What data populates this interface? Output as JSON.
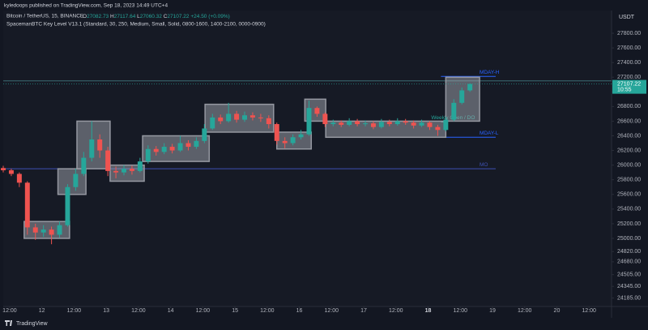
{
  "header": {
    "publisher": "kyledoops published on TradingView.com, Sep 18, 2023 14:49 UTC+4",
    "symbol": "Bitcoin / TetherUS, 15, BINANCE",
    "ohlc": [
      {
        "key": "O",
        "value": 27082.73
      },
      {
        "key": "H",
        "value": 27117.64
      },
      {
        "key": "L",
        "value": 27060.32
      },
      {
        "key": "C",
        "value": 27107.22
      }
    ],
    "change": "+24.50 (+0.09%)",
    "indicator": "SpacemanBTC Key Level V13.1 (Standard, 30, 250, Medium, Small, Solid, 0800-1600, 1400-2100, 0000-0900)",
    "currency": "USDT",
    "brand": "TradingView"
  },
  "chart_data": {
    "type": "candlestick",
    "x": [
      -0.2,
      0.05,
      0.3,
      0.55,
      0.8,
      1.05,
      1.3,
      1.55,
      1.8,
      2.05,
      2.3,
      2.55,
      2.8,
      3.05,
      3.3,
      3.55,
      3.8,
      4.05,
      4.3,
      4.55,
      4.8,
      5.05,
      5.3,
      5.55,
      5.8,
      6.05,
      6.3,
      6.55,
      6.8,
      7.05,
      7.3,
      7.55,
      7.8,
      8.05,
      8.3,
      8.55,
      8.8,
      9.05,
      9.3,
      9.55,
      9.8,
      10.05,
      10.3,
      10.55,
      10.8,
      11.05,
      11.3,
      11.55,
      11.8,
      12.05,
      12.3,
      12.55,
      12.8,
      13.05,
      13.3,
      13.55,
      13.8,
      14.05,
      14.3
    ],
    "open": [
      25960,
      25930,
      25880,
      25760,
      25150,
      25080,
      25120,
      25050,
      25180,
      25700,
      25880,
      26100,
      26350,
      26200,
      25920,
      25900,
      25950,
      25920,
      26050,
      26220,
      26180,
      26250,
      26200,
      26300,
      26250,
      26330,
      26500,
      26650,
      26600,
      26700,
      26620,
      26680,
      26650,
      26640,
      26560,
      26330,
      26300,
      26380,
      26420,
      26780,
      26700,
      26560,
      26580,
      26550,
      26600,
      26560,
      26570,
      26520,
      26590,
      26560,
      26600,
      26580,
      26540,
      26580,
      26520,
      26480,
      26620,
      26850,
      27020
    ],
    "high": [
      25990,
      25950,
      25900,
      25780,
      25200,
      25180,
      25160,
      25230,
      25740,
      25950,
      26180,
      26600,
      26420,
      26250,
      25980,
      26000,
      25990,
      26100,
      26270,
      26260,
      26300,
      26290,
      26400,
      26340,
      26380,
      26560,
      26700,
      26690,
      26850,
      26740,
      26730,
      26720,
      26700,
      26680,
      26580,
      26380,
      26420,
      26480,
      26880,
      26800,
      26720,
      26620,
      26610,
      26640,
      26630,
      26610,
      26600,
      26630,
      26620,
      26640,
      26630,
      26610,
      26620,
      26600,
      26550,
      26660,
      26900,
      27060,
      27117.64
    ],
    "low": [
      25900,
      25850,
      25700,
      25050,
      24980,
      25020,
      24920,
      25010,
      25160,
      25650,
      25850,
      26050,
      26100,
      25850,
      25820,
      25860,
      25870,
      25900,
      26020,
      26130,
      26150,
      26160,
      26180,
      26200,
      26220,
      26300,
      26480,
      26560,
      26580,
      26580,
      26590,
      26610,
      26590,
      26500,
      26280,
      26230,
      26270,
      26350,
      26400,
      26660,
      26520,
      26530,
      26520,
      26530,
      26530,
      26530,
      26490,
      26500,
      26530,
      26540,
      26550,
      26500,
      26520,
      26480,
      26400,
      26460,
      26600,
      26830,
      27000
    ],
    "close": [
      25930,
      25880,
      25760,
      25150,
      25080,
      25120,
      25050,
      25180,
      25700,
      25880,
      26100,
      26350,
      26200,
      25920,
      25900,
      25950,
      25920,
      26050,
      26220,
      26180,
      26250,
      26200,
      26300,
      26250,
      26330,
      26500,
      26650,
      26600,
      26700,
      26620,
      26680,
      26650,
      26640,
      26560,
      26330,
      26300,
      26380,
      26420,
      26780,
      26700,
      26560,
      26580,
      26550,
      26600,
      26560,
      26570,
      26520,
      26590,
      26560,
      26600,
      26580,
      26540,
      26580,
      26520,
      26480,
      26620,
      26850,
      27020,
      27107.22
    ],
    "up_color": "#26a69a",
    "down_color": "#ef5350",
    "zones": [
      {
        "x": [
          0.45,
          1.86
        ],
        "y": [
          25000,
          25230
        ]
      },
      {
        "x": [
          1.5,
          2.37
        ],
        "y": [
          25600,
          25950
        ]
      },
      {
        "x": [
          2.09,
          3.12
        ],
        "y": [
          25950,
          26600
        ]
      },
      {
        "x": [
          3.12,
          4.18
        ],
        "y": [
          25780,
          26000
        ]
      },
      {
        "x": [
          4.13,
          6.2
        ],
        "y": [
          26050,
          26400
        ]
      },
      {
        "x": [
          6.07,
          8.2
        ],
        "y": [
          26450,
          26830
        ]
      },
      {
        "x": [
          8.3,
          9.37
        ],
        "y": [
          26220,
          26450
        ]
      },
      {
        "x": [
          9.17,
          9.82
        ],
        "y": [
          26600,
          26900
        ]
      },
      {
        "x": [
          9.82,
          13.55
        ],
        "y": [
          26380,
          26600
        ]
      },
      {
        "x": [
          13.55,
          14.6
        ],
        "y": [
          26600,
          27200
        ]
      }
    ],
    "levels": [
      {
        "value": 27150,
        "x": [
          -0.2,
          18.7
        ],
        "color": "#3b6b73"
      },
      {
        "label": "MDAY-H",
        "value": 27210,
        "x": [
          13.4,
          15.1
        ],
        "color": "#2962ff"
      },
      {
        "label": "Weekly Open / DO",
        "value": 26590,
        "x": [
          13.4,
          13.6
        ],
        "color": "#26a69a"
      },
      {
        "label": "MDAY-L",
        "value": 26380,
        "x": [
          13.4,
          15.1
        ],
        "color": "#2962ff"
      },
      {
        "label": "MO",
        "value": 25950,
        "x": [
          -0.2,
          15.1
        ],
        "color": "#3f51b5"
      }
    ],
    "last_price": {
      "value": 27107.22,
      "countdown": "10:55"
    },
    "xlim": [
      -0.2,
      18.7
    ],
    "ylim": [
      24070,
      28110
    ],
    "xticks": [
      {
        "value": 0,
        "label": "12:00"
      },
      {
        "value": 1,
        "label": "12"
      },
      {
        "value": 2,
        "label": "12:00"
      },
      {
        "value": 3,
        "label": "13"
      },
      {
        "value": 4,
        "label": "12:00"
      },
      {
        "value": 5,
        "label": "14"
      },
      {
        "value": 6,
        "label": "12:00"
      },
      {
        "value": 7,
        "label": "15"
      },
      {
        "value": 8,
        "label": "12:00"
      },
      {
        "value": 9,
        "label": "16"
      },
      {
        "value": 10,
        "label": "12:00"
      },
      {
        "value": 11,
        "label": "17"
      },
      {
        "value": 12,
        "label": "12:00"
      },
      {
        "value": 13,
        "label": "18"
      },
      {
        "value": 14,
        "label": "12:00"
      },
      {
        "value": 15,
        "label": "19"
      },
      {
        "value": 16,
        "label": "12:00"
      },
      {
        "value": 17,
        "label": "20"
      },
      {
        "value": 18,
        "label": "12:00"
      }
    ],
    "yticks": [
      {
        "value": 27800,
        "label": "27800.00"
      },
      {
        "value": 27600,
        "label": "27600.00"
      },
      {
        "value": 27400,
        "label": "27400.00"
      },
      {
        "value": 27200,
        "label": "27200.00"
      },
      {
        "value": 27000,
        "label": "27000.00"
      },
      {
        "value": 26800,
        "label": "26800.00"
      },
      {
        "value": 26600,
        "label": "26600.00"
      },
      {
        "value": 26400,
        "label": "26400.00"
      },
      {
        "value": 26200,
        "label": "26200.00"
      },
      {
        "value": 26000,
        "label": "26000.00"
      },
      {
        "value": 25800,
        "label": "25800.00"
      },
      {
        "value": 25600,
        "label": "25600.00"
      },
      {
        "value": 25400,
        "label": "25400.00"
      },
      {
        "value": 25200,
        "label": "25200.00"
      },
      {
        "value": 25000,
        "label": "25000.00"
      },
      {
        "value": 24820,
        "label": "24820.00"
      },
      {
        "value": 24680,
        "label": "24680.00"
      },
      {
        "value": 24505,
        "label": "24505.00"
      },
      {
        "value": 24345,
        "label": "24345.00"
      },
      {
        "value": 24185,
        "label": "24185.00"
      }
    ],
    "grid": false
  }
}
